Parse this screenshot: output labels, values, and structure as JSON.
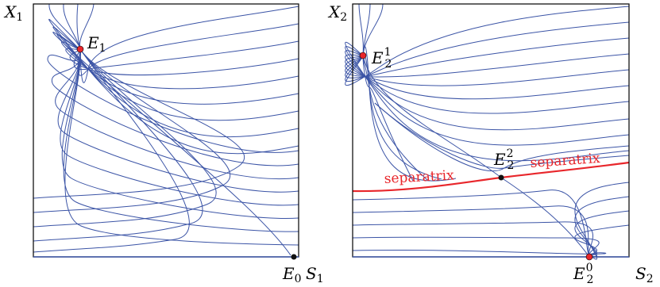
{
  "colors": {
    "trajectory": "#3b54a6",
    "separatrix": "#e8262b",
    "stable_point": "#e8262b",
    "saddle_point": "#111111",
    "axis": "#000000"
  },
  "left_panel": {
    "y_axis": {
      "main": "X",
      "sub": "1"
    },
    "x_axis": {
      "main": "S",
      "sub": "1"
    },
    "points": {
      "e1": {
        "main": "E",
        "sub": "1",
        "kind": "stable"
      },
      "e0": {
        "main": "E",
        "sub": "0",
        "kind": "saddle"
      }
    }
  },
  "right_panel": {
    "y_axis": {
      "main": "X",
      "sub": "2"
    },
    "x_axis": {
      "main": "S",
      "sub": "2"
    },
    "points": {
      "e21": {
        "main": "E",
        "sub": "2",
        "sup": "1",
        "kind": "stable"
      },
      "e22": {
        "main": "E",
        "sub": "2",
        "sup": "2",
        "kind": "saddle"
      },
      "e20": {
        "main": "E",
        "sub": "2",
        "sup": "0",
        "kind": "stable"
      }
    },
    "separatrix_labels": [
      "separatrix",
      "separatrix"
    ]
  }
}
